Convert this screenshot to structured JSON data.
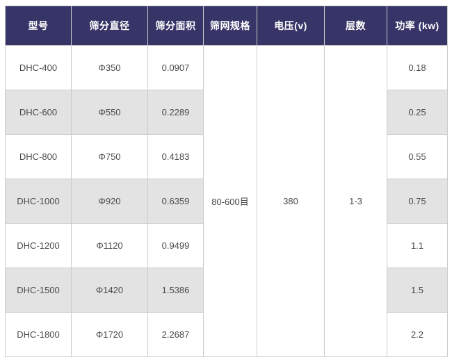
{
  "table": {
    "headers": {
      "model": "型号",
      "diameter": "筛分直径",
      "area": "筛分面积",
      "mesh": "筛网规格",
      "voltage": "电压(v)",
      "layers": "层数",
      "power": "功率 (kw)"
    },
    "merged": {
      "mesh": "80-600目",
      "voltage": "380",
      "layers": "1-3"
    },
    "rows": [
      {
        "model": "DHC-400",
        "diameter": "Φ350",
        "area": "0.0907",
        "power": "0.18"
      },
      {
        "model": "DHC-600",
        "diameter": "Φ550",
        "area": "0.2289",
        "power": "0.25"
      },
      {
        "model": "DHC-800",
        "diameter": "Φ750",
        "area": "0.4183",
        "power": "0.55"
      },
      {
        "model": "DHC-1000",
        "diameter": "Φ920",
        "area": "0.6359",
        "power": "0.75"
      },
      {
        "model": "DHC-1200",
        "diameter": "Φ1120",
        "area": "0.9499",
        "power": "1.1"
      },
      {
        "model": "DHC-1500",
        "diameter": "Φ1420",
        "area": "1.5386",
        "power": "1.5"
      },
      {
        "model": "DHC-1800",
        "diameter": "Φ1720",
        "area": "2.2687",
        "power": "2.2"
      }
    ]
  },
  "colors": {
    "header_bg": "#373568",
    "header_text": "#ffffff",
    "row_alt_bg": "#e3e3e3",
    "border": "#cccccc",
    "body_text": "#4a4a4a"
  }
}
